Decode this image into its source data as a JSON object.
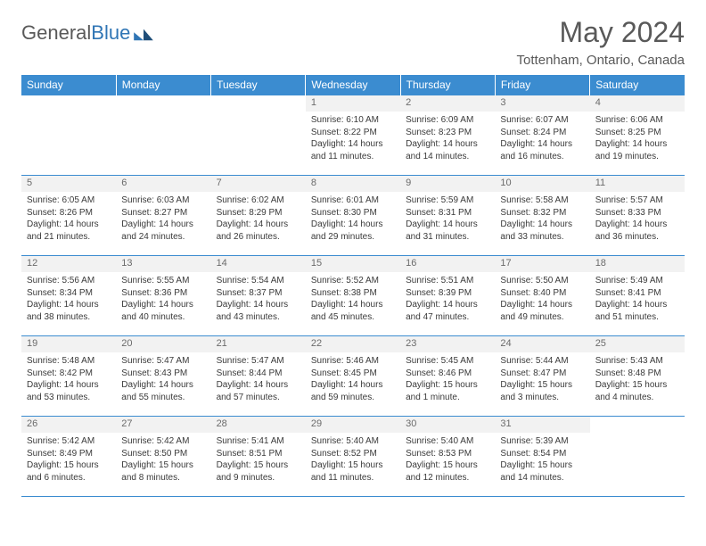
{
  "brand": {
    "text1": "General",
    "text2": "Blue"
  },
  "title": "May 2024",
  "location": "Tottenham, Ontario, Canada",
  "colors": {
    "header_bg": "#3b8cd0",
    "header_text": "#ffffff",
    "daynum_bg": "#f2f2f2",
    "rule": "#3b8cd0",
    "text": "#3a3a3a",
    "muted": "#595959"
  },
  "day_headers": [
    "Sunday",
    "Monday",
    "Tuesday",
    "Wednesday",
    "Thursday",
    "Friday",
    "Saturday"
  ],
  "weeks": [
    [
      null,
      null,
      null,
      {
        "n": "1",
        "sr": "6:10 AM",
        "ss": "8:22 PM",
        "dl": "14 hours and 11 minutes."
      },
      {
        "n": "2",
        "sr": "6:09 AM",
        "ss": "8:23 PM",
        "dl": "14 hours and 14 minutes."
      },
      {
        "n": "3",
        "sr": "6:07 AM",
        "ss": "8:24 PM",
        "dl": "14 hours and 16 minutes."
      },
      {
        "n": "4",
        "sr": "6:06 AM",
        "ss": "8:25 PM",
        "dl": "14 hours and 19 minutes."
      }
    ],
    [
      {
        "n": "5",
        "sr": "6:05 AM",
        "ss": "8:26 PM",
        "dl": "14 hours and 21 minutes."
      },
      {
        "n": "6",
        "sr": "6:03 AM",
        "ss": "8:27 PM",
        "dl": "14 hours and 24 minutes."
      },
      {
        "n": "7",
        "sr": "6:02 AM",
        "ss": "8:29 PM",
        "dl": "14 hours and 26 minutes."
      },
      {
        "n": "8",
        "sr": "6:01 AM",
        "ss": "8:30 PM",
        "dl": "14 hours and 29 minutes."
      },
      {
        "n": "9",
        "sr": "5:59 AM",
        "ss": "8:31 PM",
        "dl": "14 hours and 31 minutes."
      },
      {
        "n": "10",
        "sr": "5:58 AM",
        "ss": "8:32 PM",
        "dl": "14 hours and 33 minutes."
      },
      {
        "n": "11",
        "sr": "5:57 AM",
        "ss": "8:33 PM",
        "dl": "14 hours and 36 minutes."
      }
    ],
    [
      {
        "n": "12",
        "sr": "5:56 AM",
        "ss": "8:34 PM",
        "dl": "14 hours and 38 minutes."
      },
      {
        "n": "13",
        "sr": "5:55 AM",
        "ss": "8:36 PM",
        "dl": "14 hours and 40 minutes."
      },
      {
        "n": "14",
        "sr": "5:54 AM",
        "ss": "8:37 PM",
        "dl": "14 hours and 43 minutes."
      },
      {
        "n": "15",
        "sr": "5:52 AM",
        "ss": "8:38 PM",
        "dl": "14 hours and 45 minutes."
      },
      {
        "n": "16",
        "sr": "5:51 AM",
        "ss": "8:39 PM",
        "dl": "14 hours and 47 minutes."
      },
      {
        "n": "17",
        "sr": "5:50 AM",
        "ss": "8:40 PM",
        "dl": "14 hours and 49 minutes."
      },
      {
        "n": "18",
        "sr": "5:49 AM",
        "ss": "8:41 PM",
        "dl": "14 hours and 51 minutes."
      }
    ],
    [
      {
        "n": "19",
        "sr": "5:48 AM",
        "ss": "8:42 PM",
        "dl": "14 hours and 53 minutes."
      },
      {
        "n": "20",
        "sr": "5:47 AM",
        "ss": "8:43 PM",
        "dl": "14 hours and 55 minutes."
      },
      {
        "n": "21",
        "sr": "5:47 AM",
        "ss": "8:44 PM",
        "dl": "14 hours and 57 minutes."
      },
      {
        "n": "22",
        "sr": "5:46 AM",
        "ss": "8:45 PM",
        "dl": "14 hours and 59 minutes."
      },
      {
        "n": "23",
        "sr": "5:45 AM",
        "ss": "8:46 PM",
        "dl": "15 hours and 1 minute."
      },
      {
        "n": "24",
        "sr": "5:44 AM",
        "ss": "8:47 PM",
        "dl": "15 hours and 3 minutes."
      },
      {
        "n": "25",
        "sr": "5:43 AM",
        "ss": "8:48 PM",
        "dl": "15 hours and 4 minutes."
      }
    ],
    [
      {
        "n": "26",
        "sr": "5:42 AM",
        "ss": "8:49 PM",
        "dl": "15 hours and 6 minutes."
      },
      {
        "n": "27",
        "sr": "5:42 AM",
        "ss": "8:50 PM",
        "dl": "15 hours and 8 minutes."
      },
      {
        "n": "28",
        "sr": "5:41 AM",
        "ss": "8:51 PM",
        "dl": "15 hours and 9 minutes."
      },
      {
        "n": "29",
        "sr": "5:40 AM",
        "ss": "8:52 PM",
        "dl": "15 hours and 11 minutes."
      },
      {
        "n": "30",
        "sr": "5:40 AM",
        "ss": "8:53 PM",
        "dl": "15 hours and 12 minutes."
      },
      {
        "n": "31",
        "sr": "5:39 AM",
        "ss": "8:54 PM",
        "dl": "15 hours and 14 minutes."
      },
      null
    ]
  ],
  "labels": {
    "sunrise": "Sunrise: ",
    "sunset": "Sunset: ",
    "daylight": "Daylight: "
  }
}
